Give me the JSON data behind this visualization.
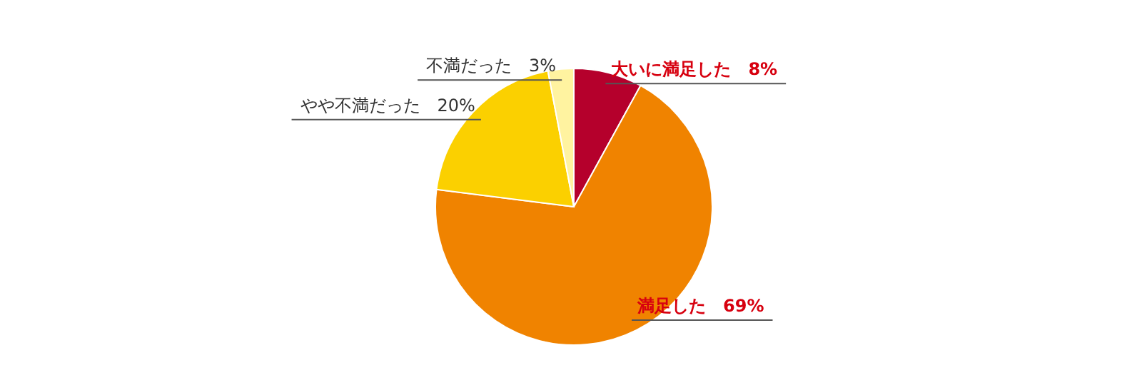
{
  "chart_data": {
    "type": "pie",
    "categories": [
      "大いに満足した",
      "満足した",
      "やや不満だった",
      "不満だった"
    ],
    "values": [
      8,
      69,
      20,
      3
    ],
    "colors": [
      "#b5002c",
      "#f08300",
      "#fbd000",
      "#fff3a0"
    ],
    "value_labels": [
      "8%",
      "69%",
      "20%",
      "3%"
    ]
  }
}
